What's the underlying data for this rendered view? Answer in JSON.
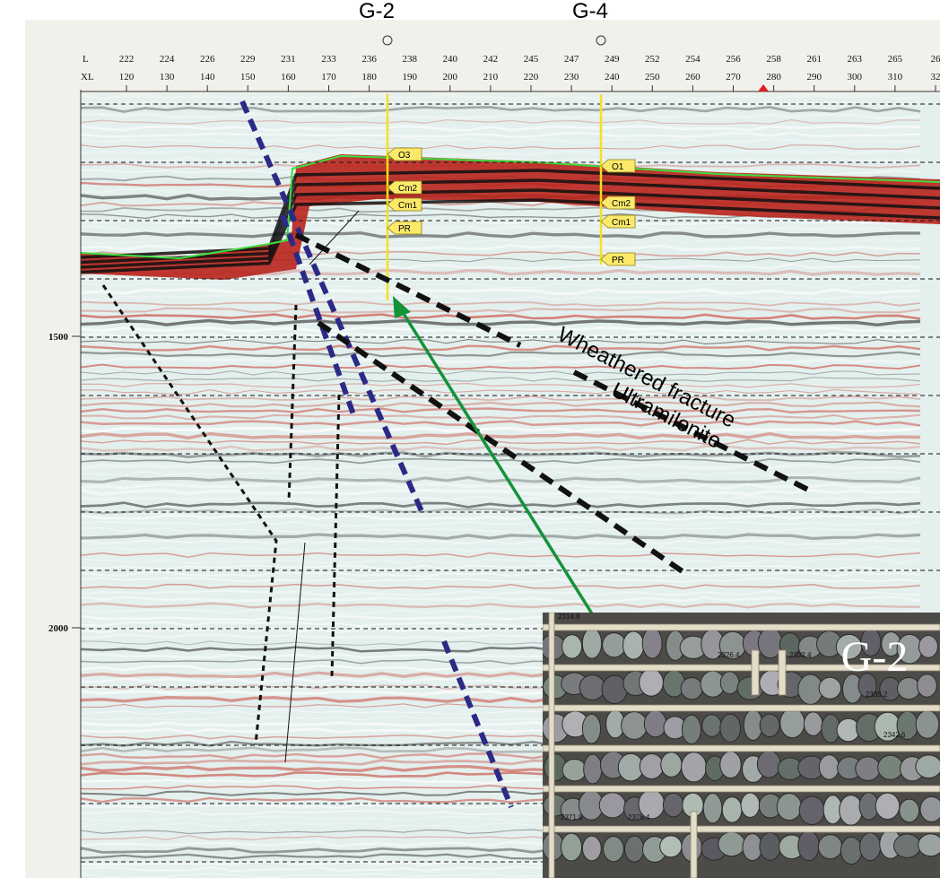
{
  "wells": [
    {
      "label": "G-2"
    },
    {
      "label": "G-4"
    }
  ],
  "header": {
    "inline_label": "L",
    "crossline_label": "XL",
    "inline": [
      222,
      224,
      226,
      229,
      231,
      233,
      236,
      238,
      240,
      242,
      245,
      247,
      249,
      252,
      254,
      256,
      258,
      261,
      263,
      265,
      26
    ],
    "crossline": [
      120,
      130,
      140,
      150,
      160,
      170,
      180,
      190,
      200,
      210,
      220,
      230,
      240,
      250,
      260,
      270,
      280,
      290,
      300,
      310,
      32
    ]
  },
  "time_labels": [
    1500,
    2000
  ],
  "well_tags": [
    [
      "O3",
      "Cm2",
      "Cm1",
      "PR"
    ],
    [
      "O1",
      "Cm2",
      "Cm1",
      "PR"
    ]
  ],
  "annotations": [
    "Wheathered fracture",
    "Ultramilonite"
  ],
  "core_photo": {
    "label": "G-2",
    "depth_marks": [
      "2314.8",
      "2326.4",
      "2332.4",
      "2335.2",
      "2342.6",
      "2371.9",
      "2375.4"
    ]
  }
}
